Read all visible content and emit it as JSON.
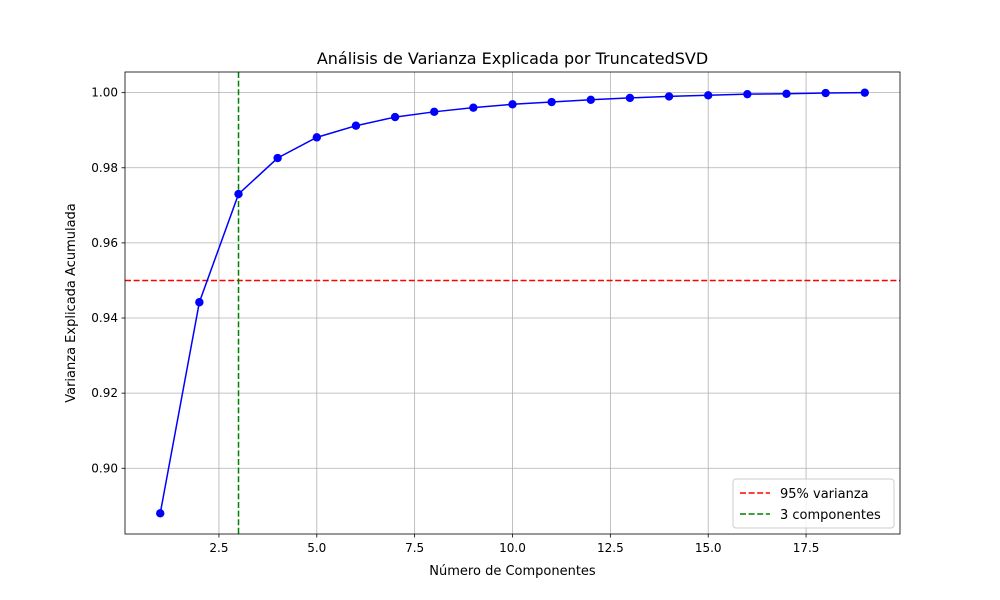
{
  "chart_data": {
    "type": "line",
    "title": "Análisis de Varianza Explicada por TruncatedSVD",
    "xlabel": "Número de Componentes",
    "ylabel": "Varianza Explicada Acumulada",
    "xlim": [
      0.1,
      19.9
    ],
    "ylim": [
      0.8825,
      1.0055
    ],
    "xticks": [
      2.5,
      5.0,
      7.5,
      10.0,
      12.5,
      15.0,
      17.5
    ],
    "xtick_labels": [
      "2.5",
      "5.0",
      "7.5",
      "10.0",
      "12.5",
      "15.0",
      "17.5"
    ],
    "yticks": [
      0.9,
      0.92,
      0.94,
      0.96,
      0.98,
      1.0
    ],
    "ytick_labels": [
      "0.90",
      "0.92",
      "0.94",
      "0.96",
      "0.98",
      "1.00"
    ],
    "grid": true,
    "legend_position": "lower-right",
    "series": [
      {
        "color": "#0000ff",
        "marker": "circle",
        "x": [
          1,
          2,
          3,
          4,
          5,
          6,
          7,
          8,
          9,
          10,
          11,
          12,
          13,
          14,
          15,
          16,
          17,
          18,
          19
        ],
        "y": [
          0.888,
          0.9442,
          0.973,
          0.9826,
          0.9881,
          0.9912,
          0.9935,
          0.9949,
          0.996,
          0.9969,
          0.9975,
          0.9981,
          0.9986,
          0.999,
          0.9993,
          0.9996,
          0.9997,
          0.9999,
          1.0
        ]
      }
    ],
    "reference_lines": [
      {
        "orientation": "horizontal",
        "value": 0.95,
        "color": "#ff0000",
        "style": "dashed",
        "label": "95% varianza"
      },
      {
        "orientation": "vertical",
        "value": 3,
        "color": "#008000",
        "style": "dashed",
        "label": "3 componentes"
      }
    ]
  }
}
